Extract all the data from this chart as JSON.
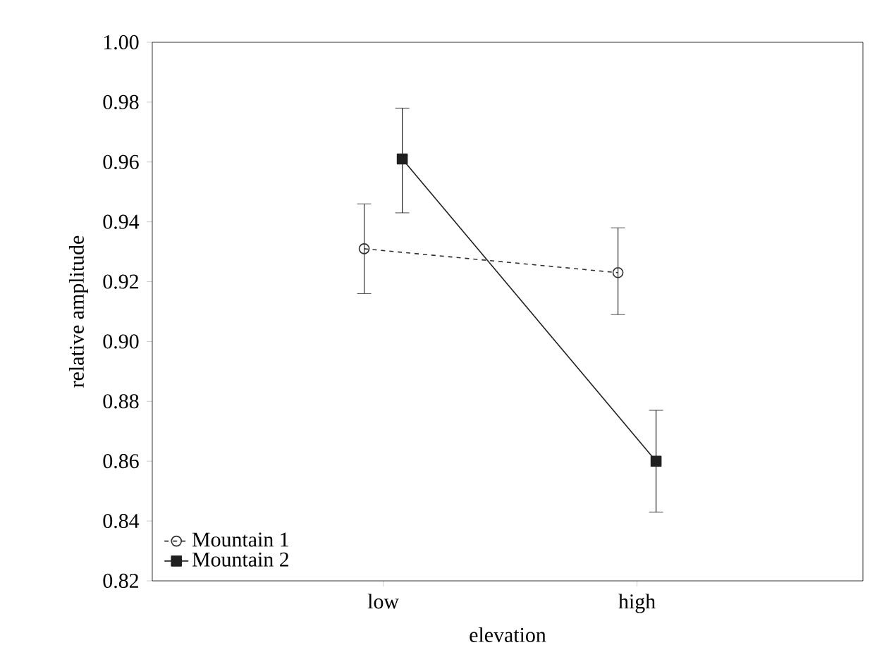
{
  "chart_data": {
    "type": "line",
    "xlabel": "elevation",
    "ylabel": "relative amplitude",
    "categories": [
      "low",
      "high"
    ],
    "series": [
      {
        "name": "Mountain 1",
        "color": "#303030",
        "values": [
          0.931,
          0.923
        ],
        "errors": [
          [
            0.916,
            0.946
          ],
          [
            0.909,
            0.938
          ]
        ],
        "marker": "circle",
        "line_style": "dashed"
      },
      {
        "name": "Mountain 2",
        "color": "#202020",
        "values": [
          0.961,
          0.86
        ],
        "errors": [
          [
            0.943,
            0.978
          ],
          [
            0.843,
            0.877
          ]
        ],
        "marker": "square",
        "line_style": "solid"
      }
    ],
    "ylim": [
      0.82,
      1.0
    ],
    "yticks": [
      0.82,
      0.84,
      0.86,
      0.88,
      {
        "value": 0.9,
        "label": "0.90"
      },
      0.92,
      0.94,
      0.96,
      0.98,
      {
        "value": 1.0,
        "label": "1.00"
      }
    ],
    "grid": false,
    "legend": "bottom left"
  }
}
